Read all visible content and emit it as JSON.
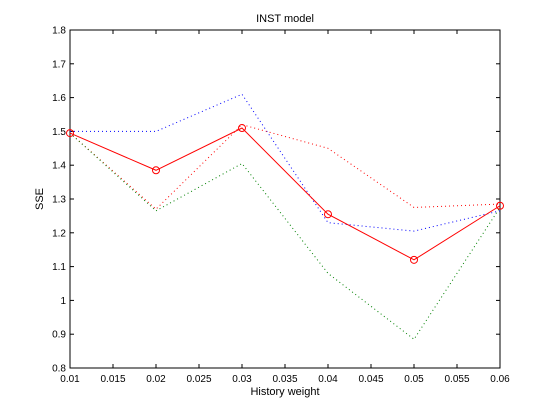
{
  "chart_data": {
    "type": "line",
    "title": "INST model",
    "xlabel": "History weight",
    "ylabel": "SSE",
    "xlim": [
      0.01,
      0.06
    ],
    "ylim": [
      0.8,
      1.8
    ],
    "grid": false,
    "x": [
      0.01,
      0.02,
      0.03,
      0.04,
      0.05,
      0.06
    ],
    "xticks": [
      "0.01",
      "0.015",
      "0.02",
      "0.025",
      "0.03",
      "0.035",
      "0.04",
      "0.045",
      "0.05",
      "0.055",
      "0.06"
    ],
    "yticks": [
      "0.8",
      "0.9",
      "1",
      "1.1",
      "1.2",
      "1.3",
      "1.4",
      "1.5",
      "1.6",
      "1.7",
      "1.8"
    ],
    "series": [
      {
        "values": [
          1.495,
          1.385,
          1.51,
          1.255,
          1.12,
          1.28
        ],
        "color": "#ff0000",
        "style": "solid",
        "marker": "circle"
      },
      {
        "values": [
          1.5,
          1.5,
          1.61,
          1.23,
          1.205,
          1.265
        ],
        "color": "#0000ff",
        "style": "dotted",
        "marker": "none"
      },
      {
        "values": [
          1.495,
          1.27,
          1.52,
          1.45,
          1.275,
          1.285
        ],
        "color": "#ff0000",
        "style": "dotted",
        "marker": "none"
      },
      {
        "values": [
          1.495,
          1.265,
          1.405,
          1.08,
          0.885,
          1.275
        ],
        "color": "#008000",
        "style": "dotted",
        "marker": "none"
      }
    ]
  }
}
